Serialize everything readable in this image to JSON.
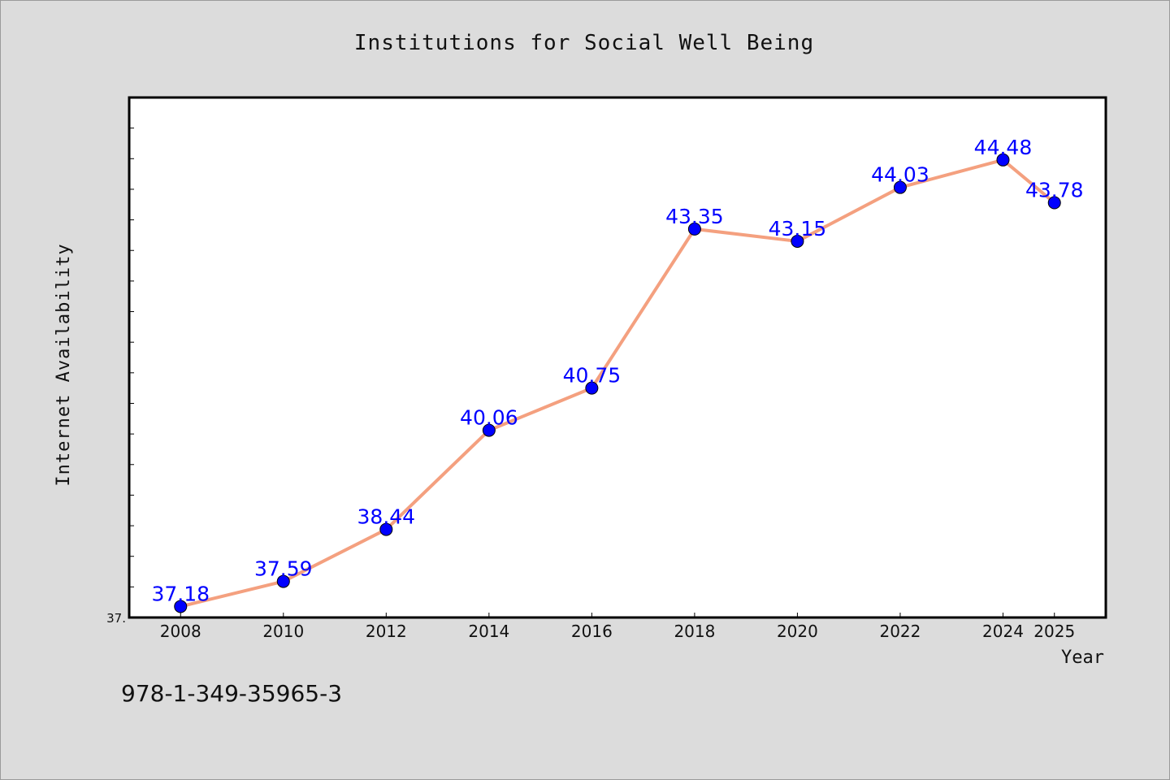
{
  "chart_data": {
    "type": "line",
    "title": "Institutions for Social Well Being",
    "xlabel": "Year",
    "ylabel": "Internet Availability",
    "x": [
      2008,
      2010,
      2012,
      2014,
      2016,
      2018,
      2020,
      2022,
      2024,
      2025
    ],
    "xticks": [
      "2008",
      "2010",
      "2012",
      "2014",
      "2016",
      "2018",
      "2020",
      "2022",
      "2024",
      "2025"
    ],
    "series": [
      {
        "values": [
          37.18,
          37.59,
          38.44,
          40.06,
          40.75,
          43.35,
          43.15,
          44.03,
          44.48,
          43.78
        ],
        "labels": [
          "37.18",
          "37.59",
          "38.44",
          "40.06",
          "40.75",
          "43.35",
          "43.15",
          "44.03",
          "44.48",
          "43.78"
        ]
      }
    ],
    "xlim": [
      2007,
      2026
    ],
    "ylim": [
      37.0,
      45.5
    ],
    "ytick_label": "37.",
    "grid": false,
    "colors": {
      "line": "#f4a07f",
      "marker": "#0000ff",
      "label": "#0000ff",
      "background": "#dcdcdc",
      "plot_bg": "#ffffff"
    }
  },
  "footer": {
    "isbn": "978-1-349-35965-3"
  }
}
